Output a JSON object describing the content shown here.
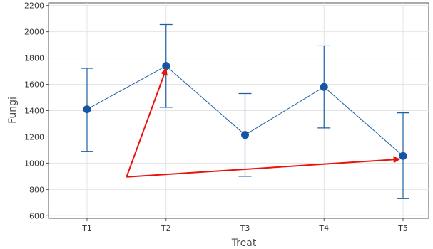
{
  "chart_data": {
    "type": "line",
    "title": "",
    "xlabel": "Treat",
    "ylabel": "Fungi",
    "categories": [
      "T1",
      "T2",
      "T3",
      "T4",
      "T5"
    ],
    "series": [
      {
        "values": [
          1410,
          1740,
          1215,
          1580,
          1055
        ],
        "error_low": [
          1090,
          1425,
          900,
          1268,
          730
        ],
        "error_high": [
          1722,
          2055,
          1530,
          1893,
          1383
        ]
      }
    ],
    "ylim": [
      580,
      2220
    ],
    "yticks": [
      600,
      800,
      1000,
      1200,
      1400,
      1600,
      1800,
      2000,
      2200
    ],
    "grid": true,
    "legend": "none",
    "colors": {
      "series": "#1f5fa8",
      "marker": "#1456a3",
      "grid": "#e4e4e4",
      "axis": "#555555",
      "annotation": "#e8140c"
    },
    "annotations": [
      {
        "type": "arrow",
        "from": {
          "x": 0.5,
          "y": 895
        },
        "to": {
          "x": 1.0,
          "y": 1715
        }
      },
      {
        "type": "arrow",
        "from": {
          "x": 0.5,
          "y": 895
        },
        "to": {
          "x": 3.95,
          "y": 1030
        }
      }
    ]
  }
}
